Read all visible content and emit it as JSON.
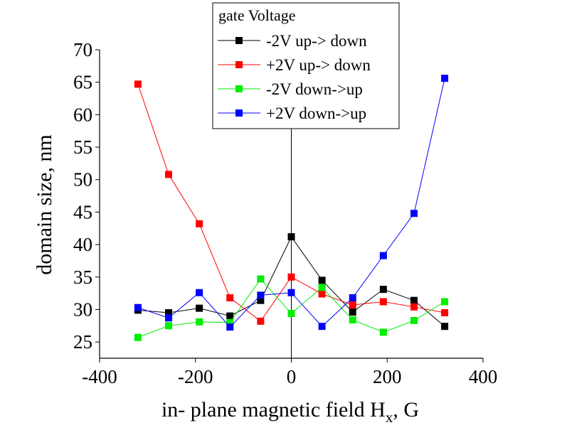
{
  "chart_data": {
    "type": "line",
    "xlabel": "in- plane magnetic field H",
    "xlabel_subscript": "x",
    "xlabel_unit": ", G",
    "ylabel": "domain size, nm",
    "xlim": [
      -400,
      400
    ],
    "ylim": [
      22.5,
      70
    ],
    "xticks": [
      -400,
      -200,
      0,
      200,
      400
    ],
    "yticks": [
      25,
      30,
      35,
      40,
      45,
      50,
      55,
      60,
      65,
      70
    ],
    "grid": false,
    "legend_title": "gate Voltage",
    "legend_position": "top-center",
    "x": [
      -320,
      -256,
      -192,
      -128,
      -64,
      0,
      64,
      128,
      192,
      256,
      320
    ],
    "series": [
      {
        "name": "-2V up-> down",
        "color": "#000000",
        "values": [
          29.9,
          29.5,
          30.2,
          29.0,
          31.4,
          41.2,
          34.5,
          29.6,
          33.1,
          31.4,
          27.4
        ]
      },
      {
        "name": "+2V up-> down",
        "color": "#ff0000",
        "values": [
          64.7,
          50.8,
          43.2,
          31.8,
          28.2,
          35.0,
          32.4,
          30.7,
          31.2,
          30.4,
          29.5
        ]
      },
      {
        "name": "-2V down->up",
        "color": "#00ee00",
        "values": [
          25.7,
          27.5,
          28.1,
          28.0,
          34.7,
          29.4,
          33.4,
          28.4,
          26.5,
          28.3,
          31.2
        ]
      },
      {
        "name": "+2V down->up",
        "color": "#0000ff",
        "values": [
          30.3,
          28.7,
          32.6,
          27.3,
          32.2,
          32.6,
          27.4,
          31.8,
          38.3,
          44.8,
          65.6
        ]
      }
    ]
  }
}
